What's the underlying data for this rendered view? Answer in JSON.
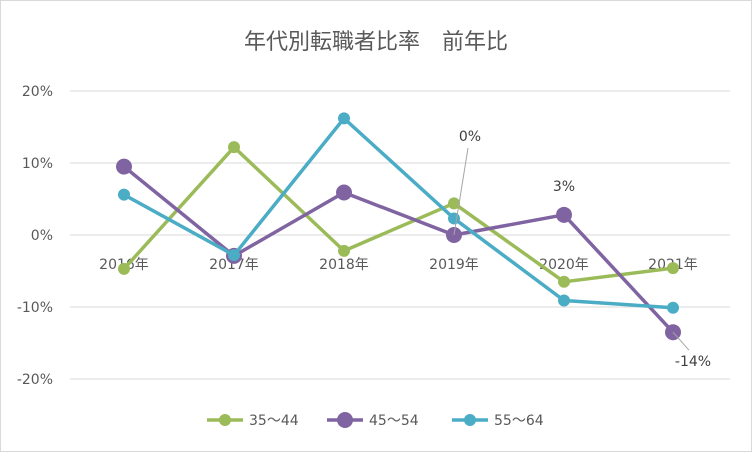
{
  "chart_data": {
    "type": "line",
    "title": "年代別転職者比率　前年比",
    "categories": [
      "2016年",
      "2017年",
      "2018年",
      "2019年",
      "2020年",
      "2021年"
    ],
    "y_ticks": [
      "20%",
      "10%",
      "0%",
      "-10%",
      "-20%"
    ],
    "ylim": [
      -0.2,
      0.2
    ],
    "grid": true,
    "legend_position": "bottom",
    "series": [
      {
        "name": "35～44",
        "color": "#9bbb59",
        "values": [
          -0.047,
          0.122,
          -0.022,
          0.044,
          -0.065,
          -0.046
        ]
      },
      {
        "name": "45～54",
        "color": "#8064a2",
        "values": [
          0.095,
          -0.029,
          0.059,
          0.0,
          0.028,
          -0.135
        ]
      },
      {
        "name": "55～64",
        "color": "#4bacc6",
        "values": [
          0.056,
          -0.028,
          0.162,
          0.023,
          -0.091,
          -0.101
        ]
      }
    ],
    "annotations": [
      {
        "text": "0%",
        "series": 1,
        "index": 3
      },
      {
        "text": "3%",
        "series": 1,
        "index": 4
      },
      {
        "text": "-14%",
        "series": 1,
        "index": 5
      }
    ]
  }
}
